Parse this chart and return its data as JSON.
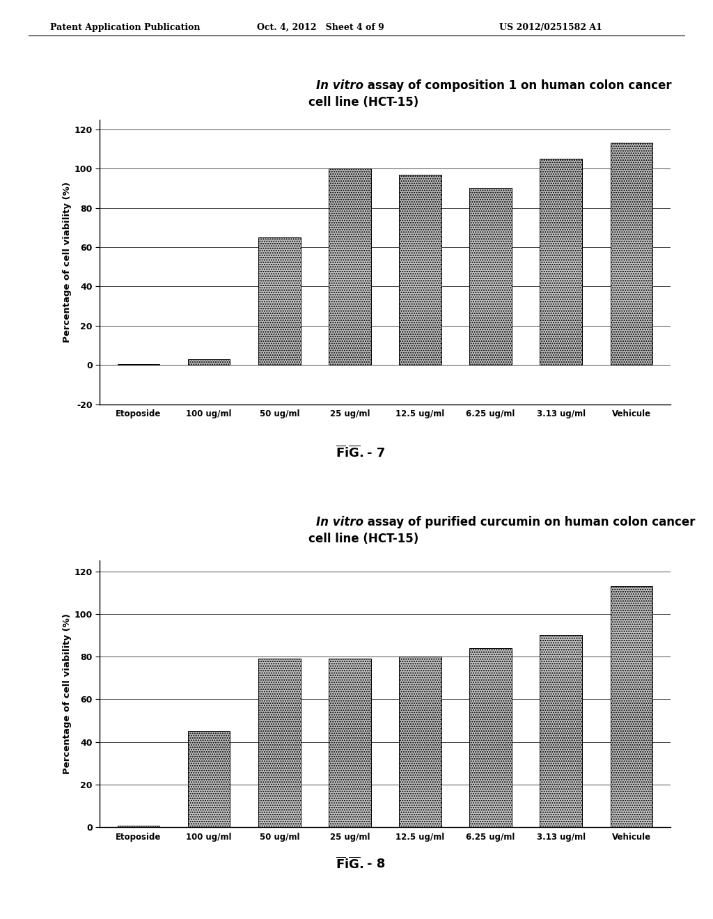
{
  "chart1": {
    "title_italic": "In vitro",
    "title_rest": " assay of composition 1 on human colon cancer",
    "title_line2": "cell line (HCT-15)",
    "categories": [
      "Etoposide",
      "100 ug/ml",
      "50 ug/ml",
      "25 ug/ml",
      "12.5 ug/ml",
      "6.25 ug/ml",
      "3.13 ug/ml",
      "Vehicule"
    ],
    "values": [
      0.5,
      3.0,
      65.0,
      100.0,
      97.0,
      90.0,
      105.0,
      113.0
    ],
    "ylabel": "Percentage of cell viability (%)",
    "ylim": [
      -20,
      125
    ],
    "yticks": [
      -20,
      0,
      20,
      40,
      60,
      80,
      100,
      120
    ],
    "fig_label": "7"
  },
  "chart2": {
    "title_italic": "In vitro",
    "title_rest": " assay of purified curcumin on human colon cancer",
    "title_line2": "cell line (HCT-15)",
    "categories": [
      "Etoposide",
      "100 ug/ml",
      "50 ug/ml",
      "25 ug/ml",
      "12.5 ug/ml",
      "6.25 ug/ml",
      "3.13 ug/ml",
      "Vehicule"
    ],
    "values": [
      0.5,
      45.0,
      79.0,
      79.0,
      80.0,
      84.0,
      90.0,
      113.0
    ],
    "ylabel": "Percentage of cell viability (%)",
    "ylim": [
      0,
      125
    ],
    "yticks": [
      0,
      20,
      40,
      60,
      80,
      100,
      120
    ],
    "fig_label": "8"
  },
  "header_left": "Patent Application Publication",
  "header_mid": "Oct. 4, 2012   Sheet 4 of 9",
  "header_right": "US 2012/0251582 A1",
  "bar_color": "#c0c0c0",
  "bar_hatch": ".....",
  "bar_edgecolor": "#000000",
  "background_color": "#ffffff",
  "title_fontsize": 12,
  "axis_label_fontsize": 9.5,
  "tick_fontsize": 9,
  "xtick_fontsize": 8.5,
  "header_fontsize": 9
}
